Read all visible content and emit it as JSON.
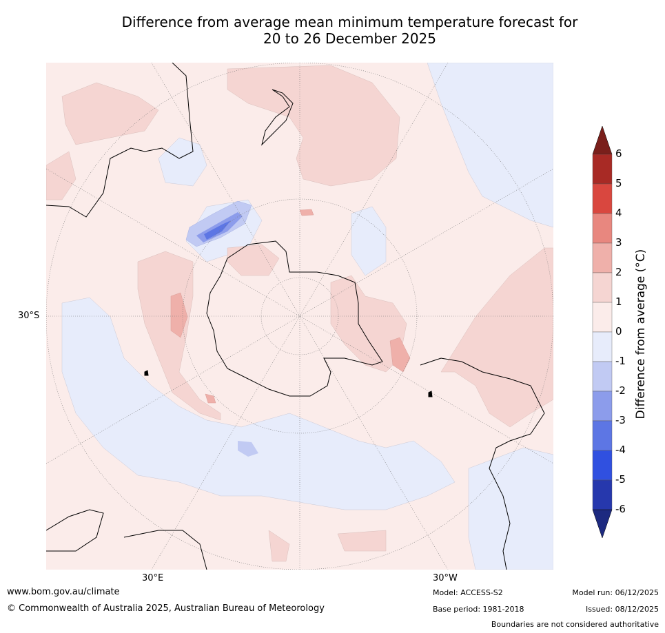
{
  "title": {
    "line1": "Difference from average mean minimum temperature forecast for",
    "line2": "20 to 26 December 2025"
  },
  "map": {
    "projection": "south-polar-stereographic",
    "lat_label_30S": "30°S",
    "lon_label_30E": "30°E",
    "lon_label_30W": "30°W",
    "features": [
      "Antarctica",
      "Australia",
      "New Zealand",
      "South America",
      "Southern Africa",
      "Madagascar"
    ]
  },
  "colorbar": {
    "title": "Difference from average (°C)",
    "ticks": [
      "6",
      "5",
      "4",
      "3",
      "2",
      "1",
      "0",
      "-1",
      "-2",
      "-3",
      "-4",
      "-5",
      "-6"
    ],
    "colors": {
      "above_6": "#7a1f1b",
      "5_to_6": "#a82a25",
      "4_to_5": "#d9473f",
      "3_to_4": "#e8877f",
      "2_to_3": "#efb0aa",
      "1_to_2": "#f5d5d2",
      "0_to_1": "#fbecea",
      "m1_to_0": "#e7ecfb",
      "m2_to_m1": "#c1caf3",
      "m3_to_m2": "#8c9ceb",
      "m4_to_m3": "#5d76e4",
      "m5_to_m4": "#3050e0",
      "m6_to_m5": "#2638ad",
      "below_m6": "#1d2a80"
    }
  },
  "footer": {
    "url": "www.bom.gov.au/climate",
    "copyright": "© Commonwealth of Australia 2025, Australian Bureau of Meteorology",
    "model": "Model: ACCESS-S2",
    "base_period": "Base period: 1981-2018",
    "model_run": "Model run: 06/12/2025",
    "issued": "Issued: 08/12/2025",
    "disclaimer": "Boundaries are not considered authoritative"
  }
}
